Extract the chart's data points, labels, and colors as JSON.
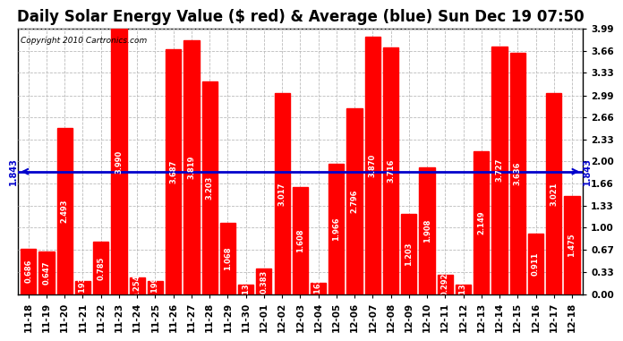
{
  "title": "Daily Solar Energy Value ($ red) & Average (blue) Sun Dec 19 07:50",
  "copyright": "Copyright 2010 Cartronics.com",
  "average": 1.843,
  "categories": [
    "11-18",
    "11-19",
    "11-20",
    "11-21",
    "11-22",
    "11-23",
    "11-24",
    "11-25",
    "11-26",
    "11-27",
    "11-28",
    "11-29",
    "11-30",
    "12-01",
    "12-02",
    "12-03",
    "12-04",
    "12-05",
    "12-06",
    "12-07",
    "12-08",
    "12-09",
    "12-10",
    "12-11",
    "12-12",
    "12-13",
    "12-14",
    "12-15",
    "12-16",
    "12-17",
    "12-18"
  ],
  "values": [
    0.686,
    0.647,
    2.493,
    0.193,
    0.785,
    3.99,
    0.254,
    0.199,
    3.687,
    3.819,
    3.203,
    1.068,
    0.137,
    0.383,
    3.017,
    1.608,
    0.165,
    1.966,
    2.796,
    3.87,
    3.716,
    1.203,
    1.908,
    0.292,
    0.139,
    2.149,
    3.727,
    3.636,
    0.911,
    3.021,
    1.475
  ],
  "bar_color": "#ff0000",
  "line_color": "#0000cc",
  "background_color": "#ffffff",
  "plot_bg_color": "#ffffff",
  "ylim": [
    0.0,
    3.99
  ],
  "yticks": [
    0.0,
    0.33,
    0.67,
    1.0,
    1.33,
    1.66,
    2.0,
    2.33,
    2.66,
    2.99,
    3.33,
    3.66,
    3.99
  ],
  "grid_color": "#bbbbbb",
  "title_fontsize": 12,
  "tick_fontsize": 7.5,
  "value_fontsize": 6.0
}
